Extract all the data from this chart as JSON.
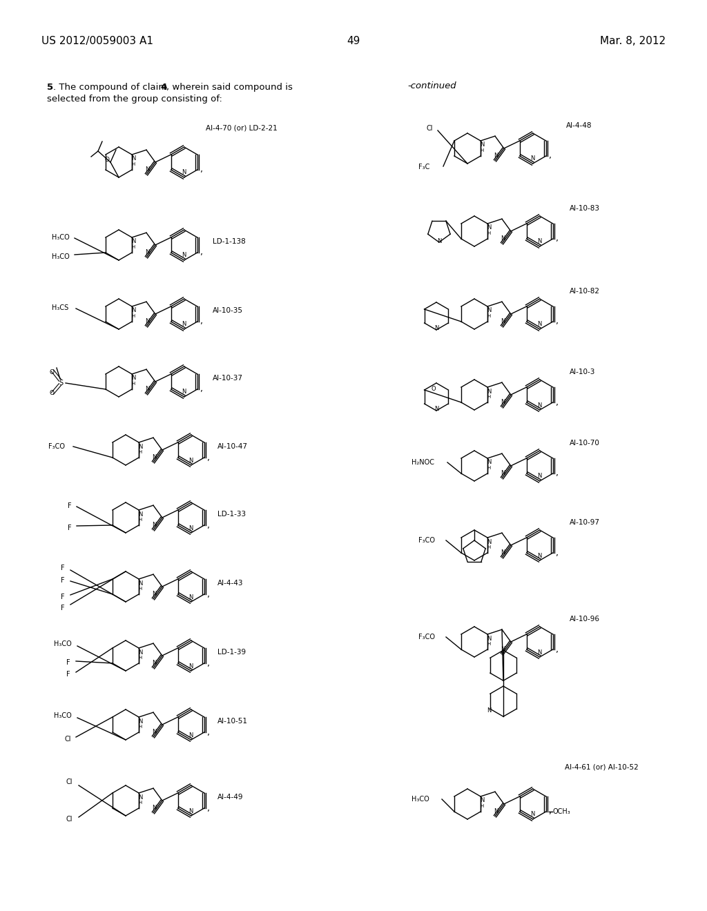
{
  "bg_color": "#ffffff",
  "page_number": "49",
  "header_left": "US 2012/0059003 A1",
  "header_right": "Mar. 8, 2012",
  "claim_text_line1": "    5. The compound of claim 4, wherein said compound is",
  "claim_text_line2": "selected from the group consisting of:",
  "continued_label": "-continued",
  "font_size_header": 11,
  "font_size_body": 9.5,
  "font_size_label": 8,
  "font_size_page": 11
}
